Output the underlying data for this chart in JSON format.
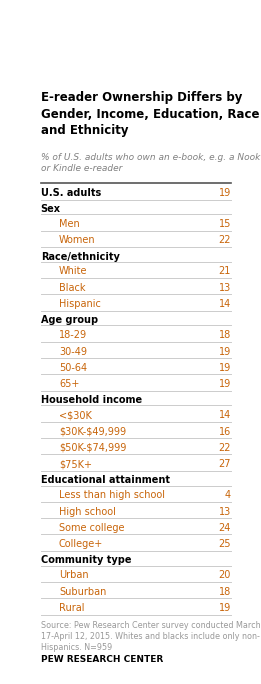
{
  "title": "E-reader Ownership Differs by\nGender, Income, Education, Race\nand Ethnicity",
  "subtitle": "% of U.S. adults who own an e-book, e.g. a Nook\nor Kindle e-reader",
  "rows": [
    {
      "label": "U.S. adults",
      "value": "19",
      "type": "header_row"
    },
    {
      "label": "Sex",
      "value": null,
      "type": "section_header"
    },
    {
      "label": "Men",
      "value": "15",
      "type": "data"
    },
    {
      "label": "Women",
      "value": "22",
      "type": "data"
    },
    {
      "label": "Race/ethnicity",
      "value": null,
      "type": "section_header"
    },
    {
      "label": "White",
      "value": "21",
      "type": "data"
    },
    {
      "label": "Black",
      "value": "13",
      "type": "data"
    },
    {
      "label": "Hispanic",
      "value": "14",
      "type": "data"
    },
    {
      "label": "Age group",
      "value": null,
      "type": "section_header"
    },
    {
      "label": "18-29",
      "value": "18",
      "type": "data"
    },
    {
      "label": "30-49",
      "value": "19",
      "type": "data"
    },
    {
      "label": "50-64",
      "value": "19",
      "type": "data"
    },
    {
      "label": "65+",
      "value": "19",
      "type": "data"
    },
    {
      "label": "Household income",
      "value": null,
      "type": "section_header"
    },
    {
      "label": "<$30K",
      "value": "14",
      "type": "data"
    },
    {
      "label": "$30K-$49,999",
      "value": "16",
      "type": "data"
    },
    {
      "label": "$50K-$74,999",
      "value": "22",
      "type": "data"
    },
    {
      "label": "$75K+",
      "value": "27",
      "type": "data"
    },
    {
      "label": "Educational attainment",
      "value": null,
      "type": "section_header"
    },
    {
      "label": "Less than high school",
      "value": "4",
      "type": "data"
    },
    {
      "label": "High school",
      "value": "13",
      "type": "data"
    },
    {
      "label": "Some college",
      "value": "24",
      "type": "data"
    },
    {
      "label": "College+",
      "value": "25",
      "type": "data"
    },
    {
      "label": "Community type",
      "value": null,
      "type": "section_header"
    },
    {
      "label": "Urban",
      "value": "20",
      "type": "data"
    },
    {
      "label": "Suburban",
      "value": "18",
      "type": "data"
    },
    {
      "label": "Rural",
      "value": "19",
      "type": "data"
    }
  ],
  "source_text": "Source: Pew Research Center survey conducted March\n17-April 12, 2015. Whites and blacks include only non-\nHispanics. N=959",
  "footer": "PEW RESEARCH CENTER",
  "title_color": "#000000",
  "subtitle_color": "#808080",
  "header_row_color": "#000000",
  "section_header_color": "#000000",
  "data_color": "#c8650a",
  "value_color": "#c8650a",
  "source_color": "#999999",
  "footer_color": "#000000",
  "light_line_color": "#cccccc",
  "dark_line_color": "#555555",
  "bg_color": "#ffffff",
  "title_fontsize": 8.5,
  "subtitle_fontsize": 6.5,
  "row_fontsize": 7.0,
  "source_fontsize": 5.8,
  "footer_fontsize": 6.5
}
